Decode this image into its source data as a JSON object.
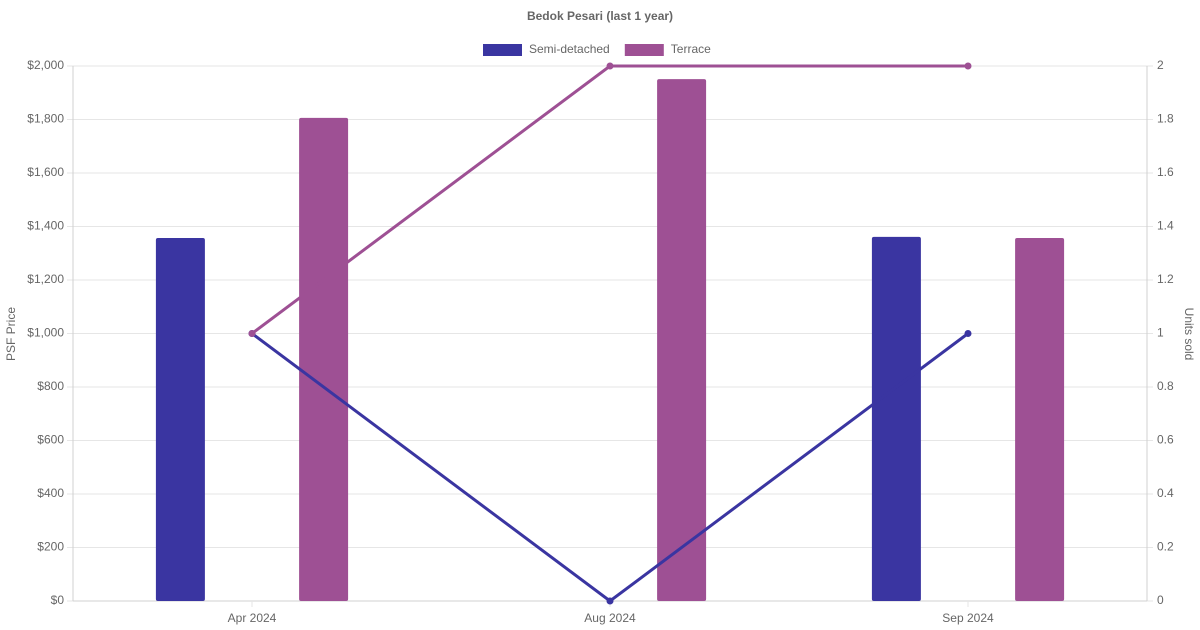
{
  "chart_data": {
    "type": "bar_line",
    "title": "Bedok Pesari (last 1 year)",
    "y_label": "PSF Price",
    "y2_label": "Units sold",
    "categories": [
      "Apr 2024",
      "Aug 2024",
      "Sep 2024"
    ],
    "series": [
      {
        "name": "Semi-detached",
        "color": "#3a35a1",
        "values": [
          1357,
          null,
          1361
        ],
        "units_sold": [
          1,
          0,
          1
        ]
      },
      {
        "name": "Terrace",
        "color": "#9e5094",
        "values": [
          1806,
          1951,
          1357
        ],
        "units_sold": [
          1,
          2,
          2
        ]
      }
    ],
    "ylim": [
      0,
      2000
    ],
    "yticks": [
      {
        "value": 0,
        "label": "$0"
      },
      {
        "value": 200,
        "label": "$200"
      },
      {
        "value": 400,
        "label": "$400"
      },
      {
        "value": 600,
        "label": "$600"
      },
      {
        "value": 800,
        "label": "$800"
      },
      {
        "value": 1000,
        "label": "$1,000"
      },
      {
        "value": 1200,
        "label": "$1,200"
      },
      {
        "value": 1400,
        "label": "$1,400"
      },
      {
        "value": 1600,
        "label": "$1,600"
      },
      {
        "value": 1800,
        "label": "$1,800"
      },
      {
        "value": 2000,
        "label": "$2,000"
      }
    ],
    "y2lim": [
      0,
      2
    ],
    "y2ticks": [
      0,
      0.2,
      0.4,
      0.6,
      0.8,
      1,
      1.2,
      1.4,
      1.6,
      1.8,
      2
    ],
    "grid": true,
    "legend": "top"
  }
}
